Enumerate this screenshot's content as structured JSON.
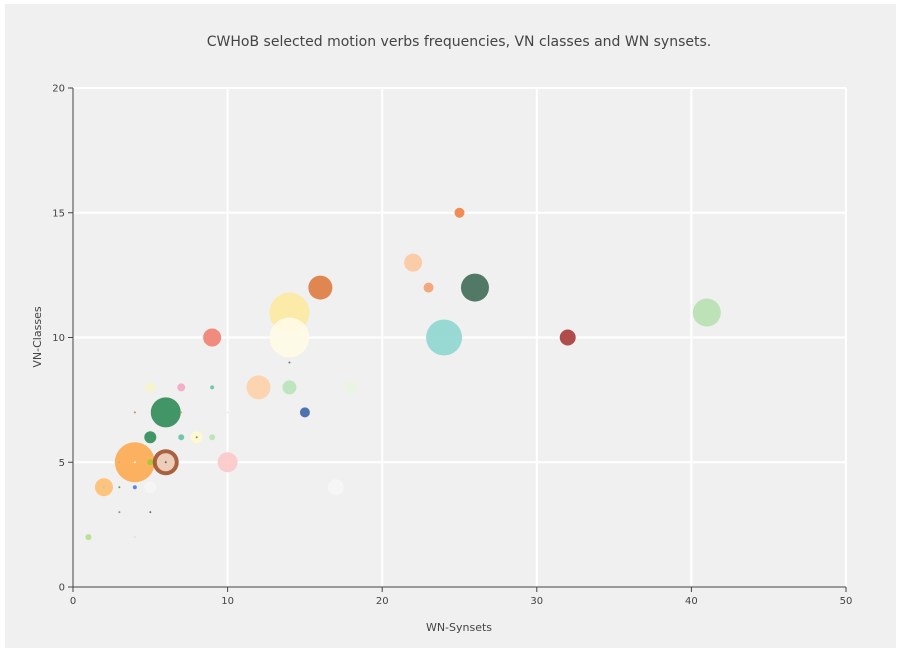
{
  "chart_data": {
    "type": "scatter",
    "title": "CWHoB selected motion verbs frequencies, VN classes and WN synsets.",
    "xlabel": "WN-Synsets",
    "ylabel": "VN-Classes",
    "xlim": [
      0,
      50
    ],
    "ylim": [
      0,
      20
    ],
    "xticks": [
      0,
      10,
      20,
      30,
      40,
      50
    ],
    "yticks": [
      0,
      5,
      10,
      15,
      20
    ],
    "grid": true,
    "legend": "none",
    "points": [
      {
        "x": 1,
        "y": 2,
        "size": 3,
        "color": "#b2df8a"
      },
      {
        "x": 2,
        "y": 4,
        "size": 9,
        "color": "#fdbf6f"
      },
      {
        "x": 2,
        "y": 4,
        "size": 1,
        "color": "#a6cee3"
      },
      {
        "x": 3,
        "y": 3,
        "size": 1,
        "color": "#888888"
      },
      {
        "x": 3,
        "y": 4,
        "size": 1,
        "color": "#33a02c"
      },
      {
        "x": 3,
        "y": 5,
        "size": 1,
        "color": "#1f78b4"
      },
      {
        "x": 4,
        "y": 4,
        "size": 2,
        "color": "#4a7ad9"
      },
      {
        "x": 4,
        "y": 7,
        "size": 1,
        "color": "#e07030"
      },
      {
        "x": 4,
        "y": 5,
        "size": 20,
        "color": "#fdaa50"
      },
      {
        "x": 4,
        "y": 5,
        "size": 1,
        "color": "#ffffff"
      },
      {
        "x": 4,
        "y": 2,
        "size": 1,
        "color": "#dddddd"
      },
      {
        "x": 5,
        "y": 8,
        "size": 5,
        "color": "#f7f3c8"
      },
      {
        "x": 5,
        "y": 6,
        "size": 6,
        "color": "#2e8b57"
      },
      {
        "x": 5,
        "y": 5,
        "size": 3,
        "color": "#9acd32"
      },
      {
        "x": 5,
        "y": 4,
        "size": 6,
        "color": "#f5f5f5"
      },
      {
        "x": 5,
        "y": 3,
        "size": 1,
        "color": "#666666"
      },
      {
        "x": 6,
        "y": 7,
        "size": 15,
        "color": "#2e8b57"
      },
      {
        "x": 6,
        "y": 5,
        "size": 13,
        "color": "#a0522d"
      },
      {
        "x": 6,
        "y": 5,
        "size": 9,
        "color": "#f4d9c6"
      },
      {
        "x": 6,
        "y": 5,
        "size": 1,
        "color": "#555555"
      },
      {
        "x": 7,
        "y": 8,
        "size": 4,
        "color": "#f4a6c8"
      },
      {
        "x": 7,
        "y": 7,
        "size": 1,
        "color": "#e6a23c"
      },
      {
        "x": 7,
        "y": 6,
        "size": 3,
        "color": "#66c2a5"
      },
      {
        "x": 8,
        "y": 6,
        "size": 6,
        "color": "#fffacd"
      },
      {
        "x": 8,
        "y": 6,
        "size": 1,
        "color": "#777777"
      },
      {
        "x": 9,
        "y": 8,
        "size": 2,
        "color": "#66c2a5"
      },
      {
        "x": 9,
        "y": 10,
        "size": 9,
        "color": "#f08070"
      },
      {
        "x": 9,
        "y": 6,
        "size": 3,
        "color": "#b8e3b0"
      },
      {
        "x": 10,
        "y": 7,
        "size": 1,
        "color": "#e8e8e8"
      },
      {
        "x": 10,
        "y": 5,
        "size": 10,
        "color": "#fbc8c8"
      },
      {
        "x": 12,
        "y": 8,
        "size": 12,
        "color": "#fdd0a8"
      },
      {
        "x": 14,
        "y": 11,
        "size": 20,
        "color": "#fde9a0"
      },
      {
        "x": 14,
        "y": 10,
        "size": 20,
        "color": "#fefbe6"
      },
      {
        "x": 14,
        "y": 9,
        "size": 1,
        "color": "#666666"
      },
      {
        "x": 14,
        "y": 8,
        "size": 7,
        "color": "#b8e3b8"
      },
      {
        "x": 15,
        "y": 7,
        "size": 5,
        "color": "#3f64a8"
      },
      {
        "x": 16,
        "y": 12,
        "size": 12,
        "color": "#de7a3e"
      },
      {
        "x": 17,
        "y": 4,
        "size": 8,
        "color": "#f6f6f6"
      },
      {
        "x": 18,
        "y": 8,
        "size": 6,
        "color": "#e8f5e0"
      },
      {
        "x": 22,
        "y": 13,
        "size": 9,
        "color": "#fbc8a0"
      },
      {
        "x": 23,
        "y": 12,
        "size": 5,
        "color": "#f4a070"
      },
      {
        "x": 24,
        "y": 10,
        "size": 18,
        "color": "#8fd6d0"
      },
      {
        "x": 25,
        "y": 15,
        "size": 5,
        "color": "#f08040"
      },
      {
        "x": 26,
        "y": 12,
        "size": 14,
        "color": "#3f6b55"
      },
      {
        "x": 32,
        "y": 10,
        "size": 8,
        "color": "#a83a3a"
      },
      {
        "x": 41,
        "y": 11,
        "size": 14,
        "color": "#b8e0b0"
      }
    ]
  }
}
